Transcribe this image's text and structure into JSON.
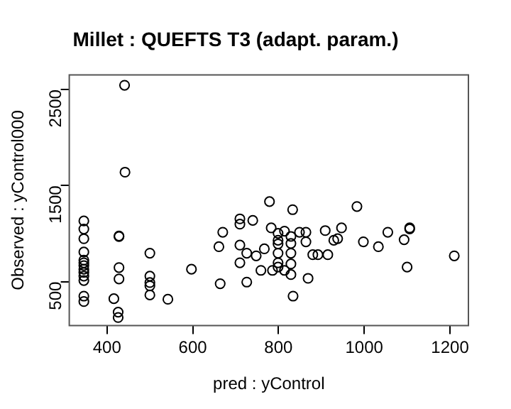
{
  "chart_data": {
    "type": "scatter",
    "title": "Millet : QUEFTS T3 (adapt. param.)",
    "xlabel": "pred : yControl",
    "ylabel": "Observed : yControl000",
    "x": [
      346,
      346,
      346,
      346,
      346,
      346,
      346,
      346,
      346,
      346,
      346,
      346,
      346,
      441,
      442,
      428,
      428,
      428,
      428,
      416,
      426,
      426,
      500,
      500,
      500,
      500,
      500,
      542,
      597,
      664,
      661,
      670,
      710,
      710,
      710,
      710,
      726,
      726,
      740,
      748,
      759,
      767,
      779,
      783,
      786,
      799,
      799,
      799,
      799,
      799,
      799,
      814,
      814,
      829,
      829,
      829,
      829,
      829,
      833,
      834,
      849,
      864,
      864,
      869,
      880,
      892,
      909,
      915,
      929,
      938,
      947,
      983,
      998,
      1033,
      1055,
      1093,
      1100,
      1106,
      1106,
      1210
    ],
    "values": [
      1131,
      1047,
      946,
      808,
      724,
      696,
      667,
      629,
      595,
      557,
      511,
      349,
      292,
      2544,
      1639,
      969,
      975,
      646,
      528,
      322,
      182,
      126,
      796,
      557,
      361,
      456,
      490,
      316,
      629,
      478,
      863,
      1014,
      1153,
      1098,
      880,
      696,
      796,
      495,
      1137,
      768,
      617,
      841,
      1333,
      1059,
      617,
      1003,
      930,
      892,
      796,
      696,
      651,
      1025,
      617,
      970,
      897,
      796,
      684,
      573,
      1249,
      349,
      1014,
      1014,
      914,
      534,
      780,
      780,
      1031,
      780,
      930,
      947,
      1059,
      1282,
      914,
      863,
      1014,
      936,
      651,
      1059,
      1048,
      768
    ],
    "color": "#000000",
    "marker": "circle",
    "grid": false,
    "legend": false,
    "xlim": [
      312,
      1243
    ],
    "ylim": [
      43,
      2651
    ],
    "xticks": [
      400,
      600,
      800,
      1000,
      1200
    ],
    "yticks": [
      500,
      1500,
      2500
    ]
  }
}
